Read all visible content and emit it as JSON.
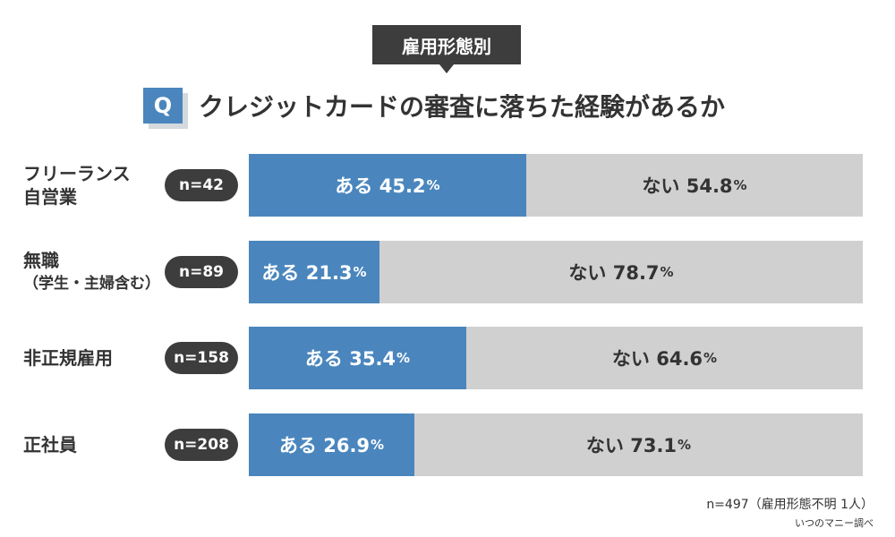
{
  "tag": "雇用形態別",
  "question_badge": "Q",
  "question": "クレジットカードの審査に落ちた経験があるか",
  "chart_data": {
    "type": "bar",
    "stacked": true,
    "orientation": "horizontal",
    "unit": "%",
    "categories": [
      {
        "line1": "フリーランス",
        "line2": "自営業",
        "n": "n=42"
      },
      {
        "line1": "無職",
        "line2": "（学生・主婦含む）",
        "n": "n=89"
      },
      {
        "line1": "非正規雇用",
        "line2": "",
        "n": "n=158"
      },
      {
        "line1": "正社員",
        "line2": "",
        "n": "n=208"
      }
    ],
    "series": [
      {
        "name": "ある",
        "color": "#4a86bd",
        "values": [
          45.2,
          21.3,
          35.4,
          26.9
        ]
      },
      {
        "name": "ない",
        "color": "#d0d0d0",
        "values": [
          54.8,
          78.7,
          64.6,
          73.1
        ]
      }
    ]
  },
  "footnote": "n=497（雇用形態不明 1人）",
  "source": "いつのマニー調べ"
}
